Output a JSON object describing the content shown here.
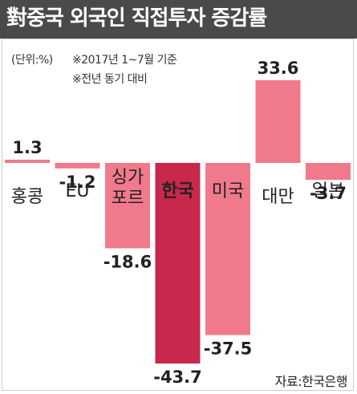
{
  "chart_data": {
    "type": "bar",
    "title": "對중국 외국인 직접투자 증감률",
    "notes": [
      "(단위:%)",
      "※2017년 1~7월 기준",
      "※전년 동기 대비"
    ],
    "source": "자료:한국은행",
    "categories": [
      {
        "label_lines": [
          "홍콩"
        ]
      },
      {
        "label_lines": [
          "EU"
        ]
      },
      {
        "label_lines": [
          "싱가",
          "포르"
        ]
      },
      {
        "label_lines": [
          "한국"
        ]
      },
      {
        "label_lines": [
          "미국"
        ]
      },
      {
        "label_lines": [
          "대만"
        ]
      },
      {
        "label_lines": [
          "일본"
        ]
      }
    ],
    "values": [
      1.3,
      -1.2,
      -18.6,
      -43.7,
      -37.5,
      33.6,
      -3.7
    ],
    "value_labels": [
      "1.3",
      "-1.2",
      "-18.6",
      "-43.7",
      "-37.5",
      "33.6",
      "-3.7"
    ],
    "highlight_index": 3,
    "ylim": [
      -43.7,
      33.6
    ],
    "colors": {
      "bar": "#f07a8c",
      "highlight": "#c8284c",
      "title_bg": "#4a4a4a",
      "text": "#222222"
    }
  }
}
